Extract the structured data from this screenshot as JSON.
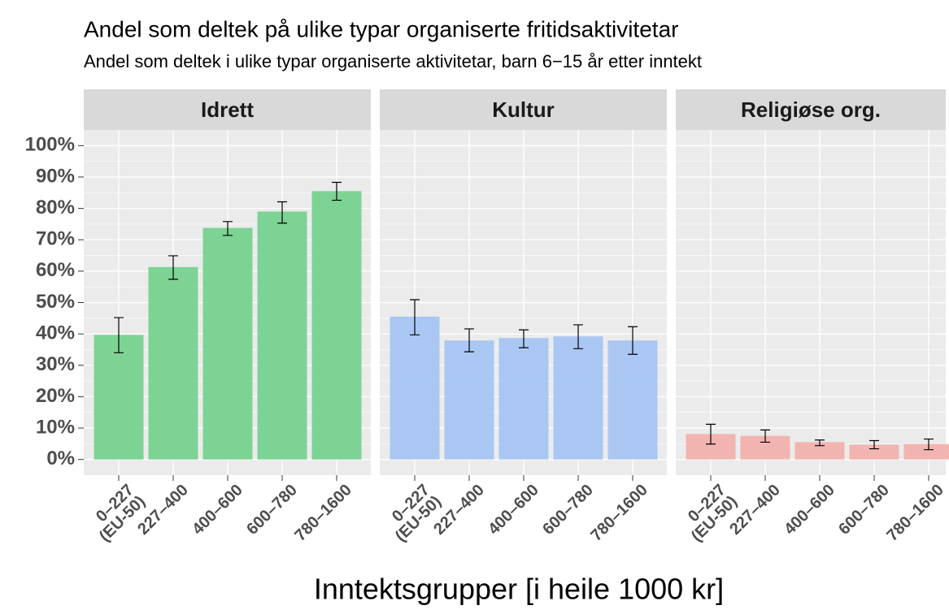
{
  "chart_data": {
    "type": "bar",
    "title": "Andel som deltek på ulike typar organiserte fritidsaktivitetar",
    "subtitle": "Andel som deltek i ulike typar organiserte aktivitetar, barn 6−15 år etter inntekt",
    "x_label": "Inntektsgrupper [i heile 1000 kr]",
    "categories": [
      "0–227\n(EU-50)",
      "227–400",
      "400–600",
      "600–780",
      "780–1600"
    ],
    "ylim": [
      -5,
      105
    ],
    "yticks": [
      {
        "value": 0,
        "label": "0%"
      },
      {
        "value": 10,
        "label": "10%"
      },
      {
        "value": 20,
        "label": "20%"
      },
      {
        "value": 30,
        "label": "30%"
      },
      {
        "value": 40,
        "label": "40%"
      },
      {
        "value": 50,
        "label": "50%"
      },
      {
        "value": 60,
        "label": "60%"
      },
      {
        "value": 70,
        "label": "70%"
      },
      {
        "value": 80,
        "label": "80%"
      },
      {
        "value": 90,
        "label": "90%"
      },
      {
        "value": 100,
        "label": "100%"
      }
    ],
    "grid": true,
    "facets": [
      {
        "name": "Idrett",
        "color": "#77d28f",
        "values": [
          39.7,
          61.3,
          73.8,
          79.0,
          85.5
        ],
        "lower": [
          34.0,
          57.4,
          71.4,
          75.3,
          82.6
        ],
        "upper": [
          45.2,
          64.9,
          75.8,
          82.1,
          88.3
        ]
      },
      {
        "name": "Kultur",
        "color": "#a7c5f3",
        "values": [
          45.5,
          37.9,
          38.7,
          39.2,
          37.9
        ],
        "lower": [
          39.7,
          34.3,
          35.6,
          35.3,
          33.5
        ],
        "upper": [
          50.9,
          41.6,
          41.3,
          42.9,
          42.3
        ]
      },
      {
        "name": "Religiøse org.",
        "color": "#f2b1ad",
        "values": [
          8.1,
          7.5,
          5.5,
          4.7,
          4.9
        ],
        "lower": [
          4.9,
          5.5,
          4.4,
          3.4,
          3.1
        ],
        "upper": [
          11.2,
          9.4,
          6.2,
          6.0,
          6.5
        ]
      }
    ]
  }
}
